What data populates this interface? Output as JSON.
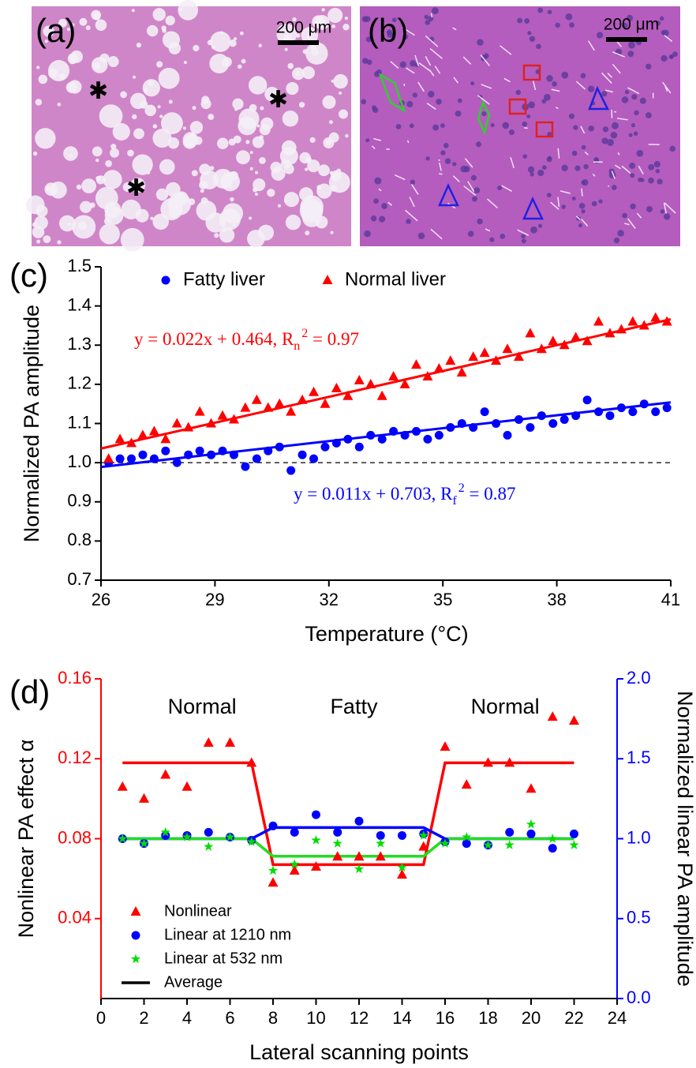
{
  "images": [
    {
      "label": "(a)",
      "scale_bar": "200 μm"
    },
    {
      "label": "(b)",
      "scale_bar": "200 μm"
    }
  ],
  "chart_data": [
    {
      "type": "scatter",
      "panel_label": "(c)",
      "x_label": "Temperature (°C)",
      "y_label": "Normalized PA amplitude",
      "xlim": [
        26,
        41
      ],
      "xticks": [
        26,
        29,
        32,
        35,
        38,
        41
      ],
      "ylim": [
        0.7,
        1.5
      ],
      "yticks": [
        0.7,
        0.8,
        0.9,
        {
          "value": 1,
          "label": "1.0"
        },
        1.1,
        1.2,
        1.3,
        1.4,
        1.5
      ],
      "reference_line": 1,
      "legend": "upper left",
      "x": [
        26.2,
        26.5,
        26.8,
        27.1,
        27.4,
        27.7,
        28.0,
        28.3,
        28.6,
        28.9,
        29.2,
        29.5,
        29.8,
        30.1,
        30.4,
        30.7,
        31.0,
        31.3,
        31.6,
        31.9,
        32.2,
        32.5,
        32.8,
        33.1,
        33.4,
        33.7,
        34.0,
        34.3,
        34.6,
        34.9,
        35.2,
        35.5,
        35.8,
        36.1,
        36.4,
        36.7,
        37.0,
        37.3,
        37.6,
        37.9,
        38.2,
        38.5,
        38.8,
        39.1,
        39.4,
        39.7,
        40.0,
        40.3,
        40.6,
        40.9
      ],
      "series": [
        {
          "name": "Fatty liver",
          "color": "#0000ff",
          "marker": "circle",
          "values": [
            1.0,
            1.01,
            1.01,
            1.02,
            1.01,
            1.03,
            1.0,
            1.02,
            1.03,
            1.02,
            1.03,
            1.02,
            0.99,
            1.01,
            1.03,
            1.04,
            0.98,
            1.02,
            1.01,
            1.04,
            1.05,
            1.06,
            1.04,
            1.07,
            1.06,
            1.08,
            1.07,
            1.08,
            1.06,
            1.07,
            1.09,
            1.1,
            1.09,
            1.13,
            1.1,
            1.07,
            1.11,
            1.09,
            1.12,
            1.1,
            1.11,
            1.12,
            1.16,
            1.13,
            1.12,
            1.14,
            1.13,
            1.15,
            1.13,
            1.14
          ]
        },
        {
          "name": "Normal liver",
          "color": "#ff0000",
          "marker": "triangle",
          "values": [
            1.01,
            1.06,
            1.05,
            1.07,
            1.08,
            1.06,
            1.1,
            1.09,
            1.13,
            1.1,
            1.12,
            1.11,
            1.14,
            1.16,
            1.14,
            1.15,
            1.13,
            1.16,
            1.18,
            1.15,
            1.19,
            1.17,
            1.21,
            1.2,
            1.17,
            1.22,
            1.2,
            1.25,
            1.22,
            1.24,
            1.26,
            1.23,
            1.27,
            1.28,
            1.26,
            1.29,
            1.27,
            1.33,
            1.29,
            1.31,
            1.3,
            1.32,
            1.31,
            1.36,
            1.33,
            1.34,
            1.36,
            1.35,
            1.37,
            1.36
          ]
        }
      ],
      "fits": [
        {
          "color": "#ff0000",
          "slope": 0.022,
          "intercept": 0.464,
          "text": "y = 0.022x + 0.464, R",
          "sub": "n",
          "sup": "2",
          "tail": " = 0.97"
        },
        {
          "color": "#0000ff",
          "slope": 0.011,
          "intercept": 0.703,
          "text": "y = 0.011x + 0.703, R",
          "sub": "f",
          "sup": "2",
          "tail": " = 0.87"
        }
      ]
    },
    {
      "type": "scatter",
      "panel_label": "(d)",
      "x_label": "Lateral scanning points",
      "y_label": "Nonlinear PA effect α",
      "y2_label": "Normalized linear PA amplitude",
      "xlim": [
        0,
        24
      ],
      "xticks": [
        0,
        2,
        4,
        6,
        8,
        10,
        12,
        14,
        16,
        18,
        20,
        22,
        24
      ],
      "ylim": [
        0,
        0.16
      ],
      "yticks": [
        0.04,
        0.08,
        0.12,
        0.16
      ],
      "y_color": "#ff0000",
      "y2lim": [
        0,
        2
      ],
      "y2ticks": [
        {
          "value": 0,
          "label": "0.0"
        },
        0.5,
        {
          "value": 1,
          "label": "1.0"
        },
        1.5,
        {
          "value": 2,
          "label": "2.0"
        }
      ],
      "y2_color": "#0000ff",
      "regions": [
        "Normal",
        "Fatty",
        "Normal"
      ],
      "legend": "lower left",
      "x": [
        1,
        2,
        3,
        4,
        5,
        6,
        7,
        8,
        9,
        10,
        11,
        12,
        13,
        14,
        15,
        16,
        17,
        18,
        19,
        20,
        21,
        22
      ],
      "series": [
        {
          "name": "Nonlinear",
          "color": "#ff0000",
          "marker": "triangle",
          "values": [
            0.106,
            0.1,
            0.112,
            0.106,
            0.128,
            0.128,
            0.118,
            0.058,
            0.064,
            0.066,
            0.071,
            0.071,
            0.071,
            0.062,
            0.076,
            0.126,
            0.107,
            0.118,
            0.118,
            0.105,
            0.141,
            0.139
          ]
        },
        {
          "name": "Linear  at 1210 nm",
          "color": "#0000ff",
          "marker": "circle",
          "axis": "y2",
          "values": [
            1.0,
            0.97,
            1.02,
            1.02,
            1.04,
            1.01,
            0.99,
            1.08,
            1.04,
            1.15,
            1.04,
            1.11,
            1.02,
            1.02,
            1.03,
            0.98,
            0.97,
            0.96,
            1.04,
            1.03,
            0.94,
            1.03
          ]
        },
        {
          "name": "Linear at 532 nm",
          "color": "#00dd00",
          "marker": "star",
          "axis": "y2",
          "values": [
            1.0,
            0.97,
            1.04,
            1.01,
            0.95,
            1.01,
            0.98,
            0.8,
            0.84,
            0.99,
            0.97,
            0.81,
            0.97,
            0.82,
            1.02,
            0.97,
            1.01,
            0.96,
            0.96,
            1.09,
            1.0,
            0.96
          ]
        }
      ],
      "average": {
        "name": "Average",
        "color": "#000000",
        "x": [
          1,
          7,
          8,
          15,
          16,
          22
        ],
        "lines": [
          {
            "color": "#ff0000",
            "values": [
              0.118,
              0.118,
              0.067,
              0.067,
              0.118,
              0.118
            ]
          },
          {
            "color": "#0000ff",
            "axis": "y2",
            "values": [
              1.0,
              1.0,
              1.07,
              1.07,
              1.0,
              1.0
            ]
          },
          {
            "color": "#22dd22",
            "axis": "y2",
            "values": [
              1.0,
              1.0,
              0.89,
              0.89,
              1.0,
              1.0
            ]
          }
        ]
      }
    }
  ]
}
